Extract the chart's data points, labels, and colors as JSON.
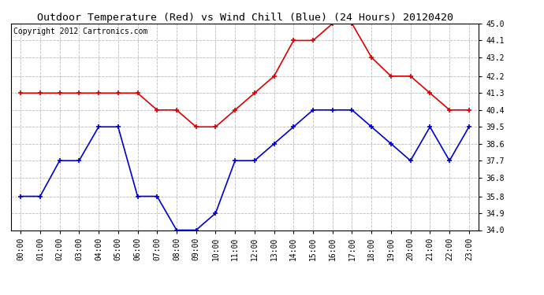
{
  "title": "Outdoor Temperature (Red) vs Wind Chill (Blue) (24 Hours) 20120420",
  "copyright": "Copyright 2012 Cartronics.com",
  "hours": [
    0,
    1,
    2,
    3,
    4,
    5,
    6,
    7,
    8,
    9,
    10,
    11,
    12,
    13,
    14,
    15,
    16,
    17,
    18,
    19,
    20,
    21,
    22,
    23
  ],
  "hour_labels": [
    "00:00",
    "01:00",
    "02:00",
    "03:00",
    "04:00",
    "05:00",
    "06:00",
    "07:00",
    "08:00",
    "09:00",
    "10:00",
    "11:00",
    "12:00",
    "13:00",
    "14:00",
    "15:00",
    "16:00",
    "17:00",
    "18:00",
    "19:00",
    "20:00",
    "21:00",
    "22:00",
    "23:00"
  ],
  "temp_red": [
    41.3,
    41.3,
    41.3,
    41.3,
    41.3,
    41.3,
    41.3,
    40.4,
    40.4,
    39.5,
    39.5,
    40.4,
    41.3,
    42.2,
    44.1,
    44.1,
    45.0,
    45.0,
    43.2,
    42.2,
    42.2,
    41.3,
    40.4,
    40.4
  ],
  "wind_chill_blue": [
    35.8,
    35.8,
    37.7,
    37.7,
    39.5,
    39.5,
    35.8,
    35.8,
    34.0,
    34.0,
    34.9,
    37.7,
    37.7,
    38.6,
    39.5,
    40.4,
    40.4,
    40.4,
    39.5,
    38.6,
    37.7,
    39.5,
    37.7,
    39.5
  ],
  "ylim": [
    34.0,
    45.0
  ],
  "yticks": [
    34.0,
    34.9,
    35.8,
    36.8,
    37.7,
    38.6,
    39.5,
    40.4,
    41.3,
    42.2,
    43.2,
    44.1,
    45.0
  ],
  "red_color": "#dd0000",
  "blue_color": "#0000cc",
  "bg_color": "#ffffff",
  "plot_bg": "#ffffff",
  "grid_color": "#bbbbbb",
  "title_fontsize": 9.5,
  "copyright_fontsize": 7,
  "tick_fontsize": 7
}
